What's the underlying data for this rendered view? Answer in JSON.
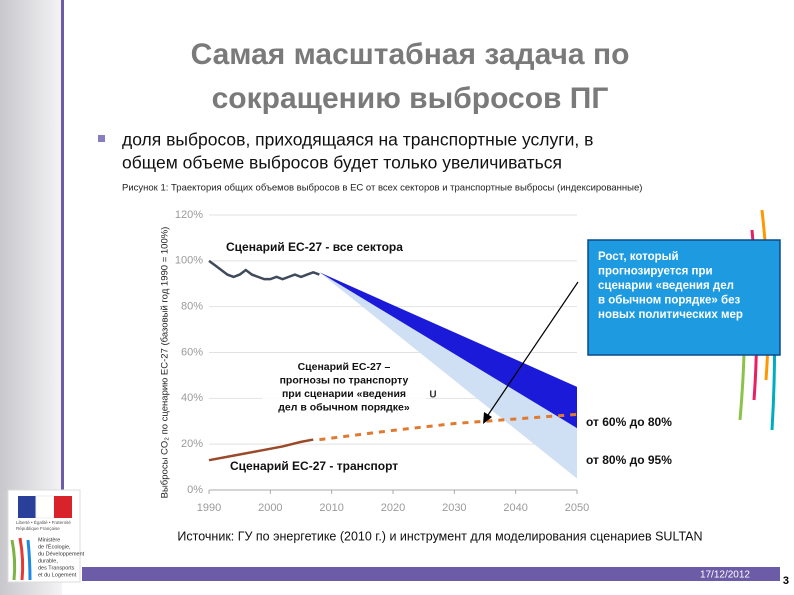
{
  "slide": {
    "title_lines": [
      "Самая масштабная задача по",
      "сокращению выбросов ПГ"
    ],
    "bullet_lines": [
      "доля выбросов, приходящаяся на транспортные услуги, в",
      "общем объеме выбросов будет только увеличиваться"
    ],
    "logo_lines": [
      "Liberté • Égalité • Fraternité",
      "République Française"
    ],
    "ministry_lines": [
      "Ministère",
      "de l'Écologie,",
      "du Développement",
      "durable,",
      "des Transports",
      "et du Logement"
    ],
    "date": "17/12/2012",
    "page": "3"
  },
  "chart_data": {
    "type": "line",
    "caption": "Рисунок 1: Траектория общих объемов выбросов в ЕС от всех секторов и транспортные выбросы (индексированные)",
    "y_label": "Выбросы CO₂ по сценарию ЕС-27  (базовый год 1990 = 100%)",
    "source": "Источник: ГУ по энергетике (2010 г.) и инструмент для моделирования сценариев SULTAN",
    "xlim": [
      1990,
      2050
    ],
    "xticks": [
      1990,
      2000,
      2010,
      2020,
      2030,
      2040,
      2050
    ],
    "ylim": [
      0,
      120
    ],
    "yticks": [
      {
        "value": 0,
        "label": "0%"
      },
      {
        "value": 20,
        "label": "20%"
      },
      {
        "value": 40,
        "label": "40%"
      },
      {
        "value": 60,
        "label": "60%"
      },
      {
        "value": 80,
        "label": "80%"
      },
      {
        "value": 100,
        "label": "100%"
      },
      {
        "value": 120,
        "label": "120%"
      }
    ],
    "grid": true,
    "bands": [
      {
        "color": "#cfe0f5",
        "x": [
          2008,
          2050
        ],
        "high": [
          95,
          27
        ],
        "low": [
          95,
          5
        ]
      },
      {
        "color": "#1a1ad8",
        "x": [
          2008,
          2050
        ],
        "high": [
          95,
          45
        ],
        "low": [
          95,
          27
        ]
      }
    ],
    "series": [
      {
        "color": "#404a5c",
        "dash": false,
        "x": [
          1990,
          1991,
          1992,
          1993,
          1994,
          1995,
          1996,
          1997,
          1998,
          1999,
          2000,
          2001,
          2002,
          2003,
          2004,
          2005,
          2006,
          2007,
          2008
        ],
        "values": [
          100,
          98,
          96,
          94,
          93,
          94,
          96,
          94,
          93,
          92,
          92,
          93,
          92,
          93,
          94,
          93,
          94,
          95,
          94
        ]
      },
      {
        "color": "#9a4a2a",
        "dash": false,
        "x": [
          1990,
          1994,
          1998,
          2002,
          2005,
          2007
        ],
        "values": [
          13,
          15,
          17,
          19,
          21,
          22
        ]
      },
      {
        "color": "#e07a30",
        "dash": true,
        "x": [
          2008,
          2020,
          2030,
          2040,
          2050
        ],
        "values": [
          22,
          26,
          29,
          31,
          33
        ]
      }
    ],
    "annotations": [
      {
        "lines": [
          "Сценарий ЕС-27 - все сектора"
        ]
      },
      {
        "lines": [
          "Сценарий ЕС-27 –",
          "прогнозы по транспорту",
          "при сценарии «ведения",
          "дел в обычном порядке»"
        ]
      },
      {
        "lines": [
          "Сценарий ЕС-27 - транспорт"
        ]
      },
      {
        "lines": [
          "U"
        ]
      },
      {
        "lines": [
          "от 60% до 80%"
        ]
      },
      {
        "lines": [
          "от 80% до 95%"
        ]
      },
      {
        "lines": [
          "Рост, который",
          "прогнозируется при",
          "сценарии «ведения дел",
          "в обычном порядке» без",
          "новых политических мер"
        ]
      }
    ]
  }
}
